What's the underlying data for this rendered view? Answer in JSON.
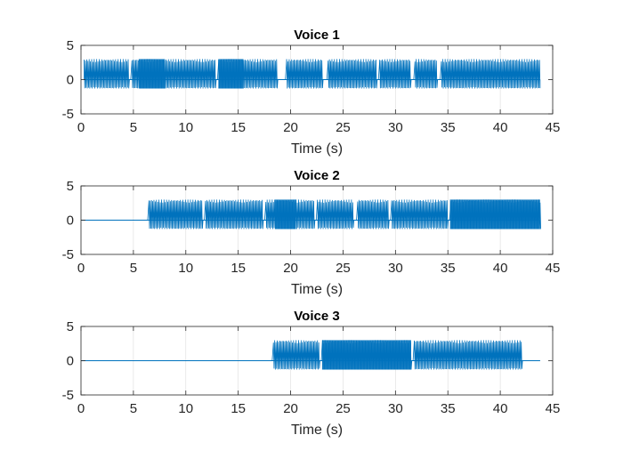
{
  "figure": {
    "line_color": "#0072BD",
    "axis_color": "#262626",
    "grid_color": "#dcdcdc"
  },
  "chart_data": [
    {
      "type": "line",
      "title": "Voice 1",
      "xlabel": "Time (s)",
      "ylabel": "",
      "xlim": [
        0,
        45
      ],
      "ylim": [
        -5,
        5
      ],
      "xticks": [
        0,
        5,
        10,
        15,
        20,
        25,
        30,
        35,
        40,
        45
      ],
      "yticks": [
        -5,
        0,
        5
      ],
      "grid": "vertical",
      "signal": {
        "start": 0.3,
        "end": 43.8,
        "baseline": 0,
        "amp_high": 3.0,
        "amp_low": -1.3,
        "active_segments": [
          [
            0.3,
            4.6
          ],
          [
            4.8,
            12.8
          ],
          [
            13.1,
            18.7
          ],
          [
            19.6,
            23.0
          ],
          [
            23.5,
            28.2
          ],
          [
            28.4,
            31.5
          ],
          [
            31.8,
            34.0
          ],
          [
            34.3,
            43.8
          ]
        ],
        "dense_segments": [
          [
            5.5,
            8.0
          ],
          [
            13.1,
            15.5
          ]
        ]
      }
    },
    {
      "type": "line",
      "title": "Voice 2",
      "xlabel": "Time (s)",
      "ylabel": "",
      "xlim": [
        0,
        45
      ],
      "ylim": [
        -5,
        5
      ],
      "xticks": [
        0,
        5,
        10,
        15,
        20,
        25,
        30,
        35,
        40,
        45
      ],
      "yticks": [
        -5,
        0,
        5
      ],
      "grid": "vertical",
      "signal": {
        "start": 0,
        "end": 43.8,
        "baseline": 0,
        "amp_high": 3.0,
        "amp_low": -1.3,
        "active_segments": [
          [
            6.4,
            11.6
          ],
          [
            11.8,
            17.3
          ],
          [
            17.6,
            22.3
          ],
          [
            22.5,
            26.0
          ],
          [
            26.3,
            29.3
          ],
          [
            29.6,
            35.0
          ],
          [
            35.2,
            43.8
          ]
        ],
        "dense_segments": [
          [
            18.5,
            20.5
          ],
          [
            35.2,
            43.8
          ]
        ]
      }
    },
    {
      "type": "line",
      "title": "Voice 3",
      "xlabel": "Time (s)",
      "ylabel": "",
      "xlim": [
        0,
        45
      ],
      "ylim": [
        -5,
        5
      ],
      "xticks": [
        0,
        5,
        10,
        15,
        20,
        25,
        30,
        35,
        40,
        45
      ],
      "yticks": [
        -5,
        0,
        5
      ],
      "grid": "vertical",
      "signal": {
        "start": 0,
        "end": 43.8,
        "baseline": 0,
        "amp_high": 3.0,
        "amp_low": -1.3,
        "active_segments": [
          [
            18.3,
            22.8
          ],
          [
            23.0,
            31.5
          ],
          [
            31.8,
            42.0
          ]
        ],
        "dense_segments": [
          [
            23.0,
            31.5
          ]
        ]
      }
    }
  ]
}
